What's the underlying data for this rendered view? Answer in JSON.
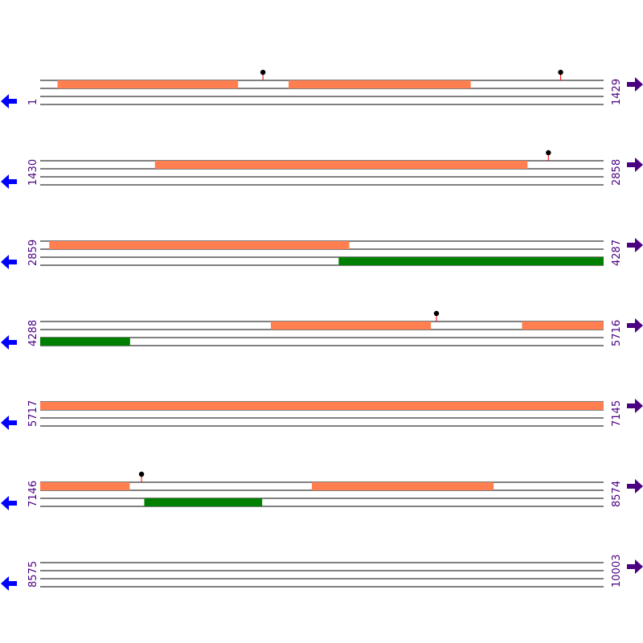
{
  "colors": {
    "track": "#000000",
    "forward_feature": "#ff7f50",
    "reverse_feature": "#008000",
    "position_label": "#4b0082",
    "left_arrow": "#0000ff",
    "right_arrow": "#4b0082",
    "marker": "#000000",
    "marker_stem": "#ff0000"
  },
  "icons": {
    "left_arrow": "arrow-left-icon",
    "right_arrow": "arrow-right-icon",
    "marker": "lollipop-marker-icon"
  },
  "rows": [
    {
      "start": "1",
      "end": "1429",
      "range": [
        1,
        1429
      ],
      "forward": [
        [
          45,
          502
        ],
        [
          631,
          1092
        ]
      ],
      "reverse": [],
      "markers": [
        566,
        1321
      ]
    },
    {
      "start": "1430",
      "end": "2858",
      "range": [
        1430,
        2858
      ],
      "forward": [
        [
          1721,
          2665
        ]
      ],
      "reverse": [],
      "markers": [
        2719
      ]
    },
    {
      "start": "2859",
      "end": "4287",
      "range": [
        2859,
        4287
      ],
      "forward": [
        [
          2882,
          3642
        ]
      ],
      "reverse": [
        [
          3616,
          4287
        ]
      ],
      "markers": []
    },
    {
      "start": "4288",
      "end": "5716",
      "range": [
        4288,
        5716
      ],
      "forward": [
        [
          4873,
          5278
        ],
        [
          5510,
          5716
        ]
      ],
      "reverse": [
        [
          4288,
          4515
        ]
      ],
      "markers": [
        5293
      ]
    },
    {
      "start": "5717",
      "end": "7145",
      "range": [
        5717,
        7145
      ],
      "forward": [
        [
          5717,
          7145
        ]
      ],
      "reverse": [],
      "markers": []
    },
    {
      "start": "7146",
      "end": "8574",
      "range": [
        7146,
        8574
      ],
      "forward": [
        [
          7146,
          7372
        ],
        [
          7835,
          8295
        ]
      ],
      "reverse": [
        [
          7410,
          7708
        ]
      ],
      "markers": [
        7403
      ]
    },
    {
      "start": "8575",
      "end": "10003",
      "range": [
        8575,
        10003
      ],
      "forward": [],
      "reverse": [],
      "markers": []
    }
  ]
}
